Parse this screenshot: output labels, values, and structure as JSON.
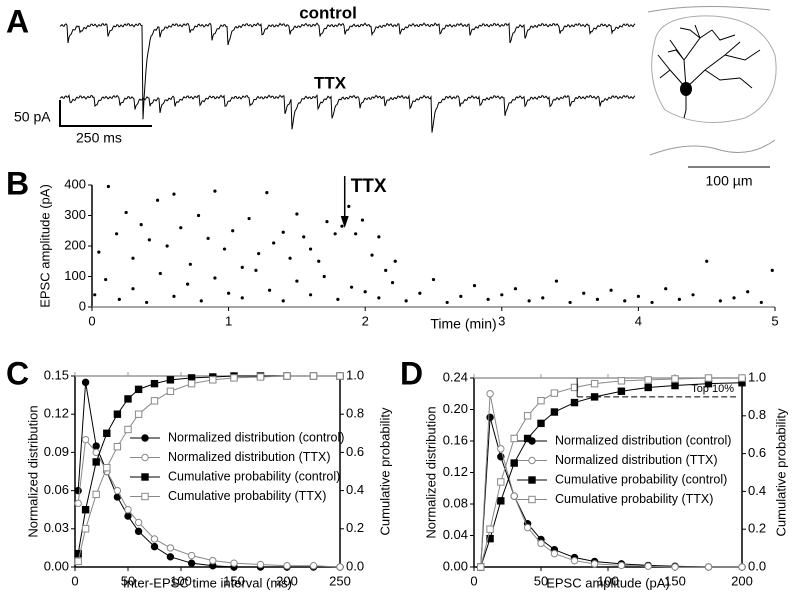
{
  "panel_labels": [
    "A",
    "B",
    "C",
    "D"
  ],
  "panel_a": {
    "trace_labels": [
      "control",
      "TTX"
    ],
    "scale_y": "50 pA",
    "scale_x": "250 ms",
    "scale_image": "100 µm"
  },
  "chart_data": [
    {
      "type": "scatter",
      "ylabel": "EPSC amplitude (pA)",
      "xlabel": "Time (min)",
      "color": "#000000",
      "x": [
        0.05,
        0.12,
        0.18,
        0.25,
        0.3,
        0.36,
        0.42,
        0.48,
        0.55,
        0.6,
        0.65,
        0.72,
        0.78,
        0.85,
        0.9,
        0.97,
        1.03,
        1.1,
        1.15,
        1.22,
        1.28,
        1.33,
        1.4,
        1.45,
        1.5,
        1.55,
        1.6,
        1.66,
        1.72,
        1.78,
        1.83,
        1.88,
        1.93,
        1.98,
        2.05,
        2.1,
        2.15,
        2.22,
        0.02,
        0.1,
        0.2,
        0.3,
        0.4,
        0.5,
        0.6,
        0.7,
        0.8,
        0.9,
        1.0,
        1.1,
        1.2,
        1.3,
        1.4,
        1.5,
        1.6,
        1.7,
        1.8,
        1.9,
        2.0,
        2.1,
        2.2,
        2.3,
        2.4,
        2.5,
        2.6,
        2.7,
        2.8,
        2.9,
        3.0,
        3.1,
        3.2,
        3.3,
        3.4,
        3.5,
        3.6,
        3.7,
        3.8,
        3.9,
        4.0,
        4.1,
        4.2,
        4.3,
        4.4,
        4.5,
        4.6,
        4.7,
        4.8,
        4.9,
        4.98
      ],
      "values": [
        180,
        395,
        240,
        310,
        160,
        270,
        220,
        350,
        200,
        370,
        260,
        140,
        300,
        225,
        380,
        190,
        250,
        130,
        290,
        175,
        375,
        210,
        245,
        160,
        305,
        230,
        190,
        150,
        280,
        240,
        265,
        330,
        240,
        285,
        170,
        230,
        120,
        150,
        40,
        90,
        25,
        60,
        15,
        110,
        35,
        75,
        20,
        95,
        45,
        30,
        120,
        55,
        20,
        85,
        40,
        100,
        25,
        65,
        50,
        30,
        80,
        20,
        45,
        90,
        15,
        35,
        70,
        25,
        40,
        60,
        20,
        30,
        85,
        15,
        45,
        25,
        55,
        20,
        35,
        15,
        60,
        25,
        40,
        150,
        20,
        30,
        50,
        15,
        120
      ],
      "xlim": [
        0,
        5
      ],
      "ylim": [
        0,
        400
      ],
      "xticks": [
        0,
        1,
        2,
        3,
        4,
        5
      ],
      "yticks": [
        0,
        100,
        200,
        300,
        400
      ],
      "annotation": {
        "text": "TTX",
        "x": 1.85
      }
    },
    {
      "type": "line",
      "xlabel": "Inter-EPSC time interval (ms)",
      "ylabel": "Normalized distribution",
      "y2label": "Cumulative probability",
      "x": [
        3,
        10,
        20,
        30,
        40,
        50,
        60,
        75,
        90,
        110,
        130,
        150,
        175,
        200,
        225,
        250
      ],
      "series": [
        {
          "name": "Normalized distribution (control)",
          "color": "#000000",
          "marker": "filled-circle",
          "values": [
            0.06,
            0.145,
            0.095,
            0.075,
            0.055,
            0.04,
            0.028,
            0.016,
            0.008,
            0.003,
            0.001,
            0,
            0,
            0,
            0,
            0
          ]
        },
        {
          "name": "Normalized distribution (TTX)",
          "color": "#888888",
          "marker": "open-circle",
          "values": [
            0.05,
            0.1,
            0.09,
            0.075,
            0.06,
            0.045,
            0.035,
            0.022,
            0.015,
            0.009,
            0.005,
            0.003,
            0.002,
            0.001,
            0.001,
            0
          ]
        },
        {
          "name": "Cumulative probability (control)",
          "color": "#000000",
          "marker": "filled-square",
          "axis": "y2",
          "values": [
            0.07,
            0.3,
            0.55,
            0.7,
            0.8,
            0.88,
            0.93,
            0.96,
            0.98,
            0.99,
            0.995,
            1,
            1,
            1,
            1,
            1
          ]
        },
        {
          "name": "Cumulative probability (TTX)",
          "color": "#888888",
          "marker": "open-square",
          "axis": "y2",
          "values": [
            0.03,
            0.2,
            0.38,
            0.52,
            0.63,
            0.72,
            0.8,
            0.87,
            0.92,
            0.96,
            0.98,
            0.99,
            0.995,
            1,
            1,
            1
          ]
        }
      ],
      "xlim": [
        0,
        250
      ],
      "ylim": [
        0,
        0.15
      ],
      "y2lim": [
        0,
        1
      ],
      "xticks": [
        0,
        50,
        100,
        150,
        200,
        250
      ],
      "yticks": [
        {
          "value": 0,
          "label": "0.00"
        },
        {
          "value": 0.03,
          "label": "0.03"
        },
        {
          "value": 0.06,
          "label": "0.06"
        },
        {
          "value": 0.09,
          "label": "0.09"
        },
        {
          "value": 0.12,
          "label": "0.12"
        },
        {
          "value": 0.15,
          "label": "0.15"
        }
      ],
      "y2ticks": [
        {
          "value": 0,
          "label": "0.0"
        },
        {
          "value": 0.2,
          "label": "0.2"
        },
        {
          "value": 0.4,
          "label": "0.4"
        },
        {
          "value": 0.6,
          "label": "0.6"
        },
        {
          "value": 0.8,
          "label": "0.8"
        },
        {
          "value": 1,
          "label": "1.0"
        }
      ],
      "legend": "center-right"
    },
    {
      "type": "line",
      "xlabel": "EPSC amplitude (pA)",
      "ylabel": "Normalized distribution",
      "y2label": "Cumulative probability",
      "x": [
        5,
        12,
        20,
        30,
        40,
        50,
        60,
        75,
        90,
        110,
        130,
        150,
        175,
        200
      ],
      "series": [
        {
          "name": "Normalized distribution (control)",
          "color": "#000000",
          "marker": "filled-circle",
          "values": [
            0,
            0.19,
            0.14,
            0.09,
            0.055,
            0.035,
            0.022,
            0.012,
            0.007,
            0.004,
            0.002,
            0.001,
            0,
            0
          ]
        },
        {
          "name": "Normalized distribution (TTX)",
          "color": "#888888",
          "marker": "open-circle",
          "values": [
            0,
            0.22,
            0.15,
            0.09,
            0.05,
            0.03,
            0.017,
            0.008,
            0.004,
            0.002,
            0.001,
            0,
            0,
            0
          ]
        },
        {
          "name": "Cumulative probability (control)",
          "color": "#000000",
          "marker": "filled-square",
          "axis": "y2",
          "values": [
            0,
            0.15,
            0.35,
            0.55,
            0.68,
            0.76,
            0.82,
            0.87,
            0.9,
            0.93,
            0.95,
            0.96,
            0.97,
            0.975
          ]
        },
        {
          "name": "Cumulative probability (TTX)",
          "color": "#888888",
          "marker": "open-square",
          "axis": "y2",
          "values": [
            0,
            0.2,
            0.45,
            0.68,
            0.8,
            0.88,
            0.92,
            0.95,
            0.97,
            0.985,
            0.99,
            0.995,
            1,
            1
          ]
        }
      ],
      "xlim": [
        0,
        200
      ],
      "ylim": [
        0,
        0.24
      ],
      "y2lim": [
        0,
        1
      ],
      "xticks": [
        0,
        50,
        100,
        150,
        200
      ],
      "yticks": [
        {
          "value": 0,
          "label": "0.00"
        },
        {
          "value": 0.04,
          "label": "0.04"
        },
        {
          "value": 0.08,
          "label": "0.08"
        },
        {
          "value": 0.12,
          "label": "0.12"
        },
        {
          "value": 0.16,
          "label": "0.16"
        },
        {
          "value": 0.2,
          "label": "0.20"
        },
        {
          "value": 0.24,
          "label": "0.24"
        }
      ],
      "y2ticks": [
        {
          "value": 0,
          "label": "0.0"
        },
        {
          "value": 0.2,
          "label": "0.2"
        },
        {
          "value": 0.4,
          "label": "0.4"
        },
        {
          "value": 0.6,
          "label": "0.6"
        },
        {
          "value": 0.8,
          "label": "0.8"
        },
        {
          "value": 1,
          "label": "1.0"
        }
      ],
      "legend": "center-right",
      "annotation": {
        "text": "Top 10%",
        "x": 77,
        "y2": 0.9
      }
    }
  ]
}
